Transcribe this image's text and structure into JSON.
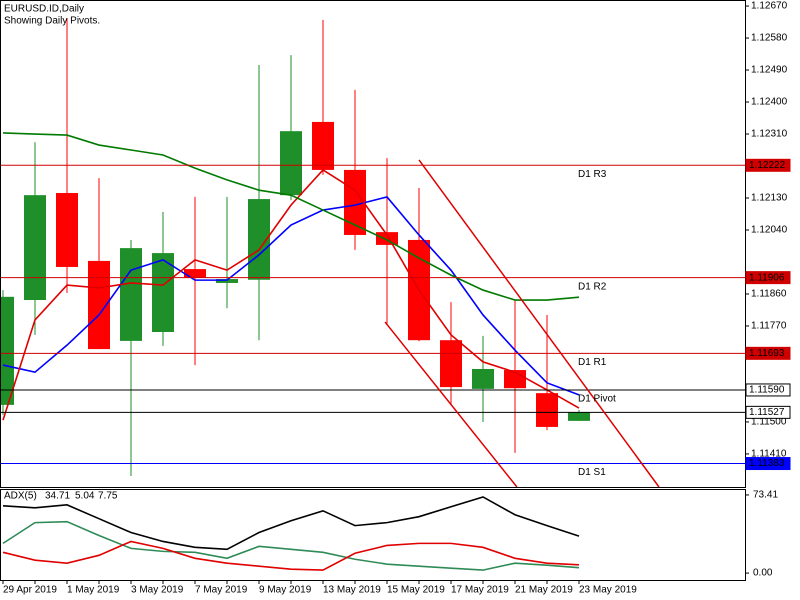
{
  "chart_data": [
    {
      "type": "candlestick",
      "title": "EURUSD.ID,Daily",
      "subtitle": "Showing Daily Pivots.",
      "categories": [
        "29 Apr 2019",
        null,
        "1 May 2019",
        null,
        "3 May 2019",
        null,
        "7 May 2019",
        null,
        "9 May 2019",
        null,
        "13 May 2019",
        null,
        "15 May 2019",
        null,
        "17 May 2019",
        null,
        "21 May 2019",
        null,
        "23 May 2019"
      ],
      "open": [
        1.11548,
        1.11843,
        1.12144,
        1.11953,
        1.11728,
        1.11753,
        1.1193,
        1.11891,
        1.119,
        1.12138,
        1.12344,
        1.12209,
        1.12034,
        1.12012,
        1.1173,
        1.11593,
        1.11646,
        1.11581,
        1.11503
      ],
      "high": [
        1.11871,
        1.12287,
        1.12636,
        1.12186,
        1.12012,
        1.12091,
        1.12133,
        1.12133,
        1.12504,
        1.12532,
        1.12631,
        1.12434,
        1.12242,
        1.12158,
        1.11837,
        1.11742,
        1.11843,
        1.11801,
        1.11534
      ],
      "low": [
        1.1152,
        1.11745,
        1.11863,
        1.11705,
        1.11348,
        1.11714,
        1.1166,
        1.1182,
        1.1173,
        1.12124,
        1.12195,
        1.11984,
        1.11773,
        1.11727,
        1.11548,
        1.115,
        1.11413,
        1.11477,
        1.11503
      ],
      "close": [
        1.11852,
        1.12138,
        1.11936,
        1.11705,
        1.11989,
        1.11975,
        1.11905,
        1.11902,
        1.12127,
        1.12318,
        1.12209,
        1.12026,
        1.11998,
        1.1173,
        1.11598,
        1.11649,
        1.11595,
        1.11486,
        1.11527
      ],
      "up_color": "#1f8f2a",
      "down_color": "#ff0000",
      "series": [
        {
          "color": "#0000ff",
          "values": [
            1.1166,
            1.1164,
            1.11716,
            1.11801,
            1.11927,
            1.11956,
            1.11899,
            1.11899,
            1.1197,
            1.12054,
            1.12096,
            1.1211,
            1.12133,
            1.12026,
            1.11927,
            1.11801,
            1.11702,
            1.1161,
            1.11576
          ]
        },
        {
          "color": "#e00000",
          "values": [
            1.11505,
            1.11787,
            1.11885,
            1.11877,
            1.11891,
            1.11885,
            1.11956,
            1.11927,
            1.11984,
            1.1211,
            1.12209,
            1.12152,
            1.12026,
            1.11871,
            1.11745,
            1.11669,
            1.1164,
            1.1159,
            1.11539
          ]
        },
        {
          "color": "#007a00",
          "values": [
            1.12313,
            1.1231,
            1.12307,
            1.12279,
            1.12265,
            1.12251,
            1.12214,
            1.12181,
            1.12152,
            1.12138,
            1.12096,
            1.12054,
            1.12012,
            1.11961,
            1.11913,
            1.11871,
            1.11843,
            1.11843,
            1.11851
          ]
        }
      ],
      "pivots": [
        {
          "name": "D1 R3",
          "value": 1.12222,
          "label": "1.12222",
          "color": "#d00000"
        },
        {
          "name": "D1 R2",
          "value": 1.11906,
          "label": "1.11906",
          "color": "#d00000"
        },
        {
          "name": "D1 R1",
          "value": 1.11693,
          "label": "1.11693",
          "color": "#d00000"
        },
        {
          "name": "D1 Pivot",
          "value": 1.1159,
          "label": "1.11590",
          "color": "#000000"
        },
        {
          "name": "D1 S1",
          "value": 1.11383,
          "label": "1.11383",
          "color": "#0000ff"
        }
      ],
      "last_price": {
        "value": 1.11527,
        "label": "1.11527",
        "color": "#000000"
      },
      "trendlines": [
        {
          "color": "#e00000",
          "x": [
            13,
            20.5
          ],
          "y": [
            1.12237,
            1.11317
          ]
        },
        {
          "color": "#e00000",
          "x": [
            11.94,
            16.06
          ],
          "y": [
            1.11781,
            1.11317
          ]
        }
      ],
      "ylim": [
        1.11317,
        1.12687
      ],
      "yticks": [
        {
          "value": 1.1267,
          "label": "1.12670"
        },
        {
          "value": 1.1258,
          "label": "1.12580"
        },
        {
          "value": 1.1249,
          "label": "1.12490"
        },
        {
          "value": 1.124,
          "label": "1.12400"
        },
        {
          "value": 1.1231,
          "label": "1.12310"
        },
        {
          "value": 1.1213,
          "label": "1.12130"
        },
        {
          "value": 1.1204,
          "label": "1.12040"
        },
        {
          "value": 1.1186,
          "label": "1.11860"
        },
        {
          "value": 1.1177,
          "label": "1.11770"
        },
        {
          "value": 1.115,
          "label": "1.11500"
        },
        {
          "value": 1.1141,
          "label": "1.11410"
        }
      ]
    },
    {
      "type": "line",
      "title": "ADX(5)",
      "series": [
        {
          "color": "#000000",
          "values": [
            63.2,
            61.3,
            64.1,
            51.1,
            38.1,
            29.7,
            24.2,
            22.3,
            38.1,
            49.2,
            58.5,
            44.6,
            47.4,
            53.0,
            62.3,
            71.5,
            54.8,
            44.6,
            34.71
          ]
        },
        {
          "color": "#2e8b57",
          "values": [
            27.9,
            47.4,
            48.3,
            35.3,
            23.2,
            20.4,
            19.5,
            13.9,
            25.1,
            22.3,
            19.5,
            13.0,
            8.4,
            6.5,
            4.6,
            2.8,
            9.3,
            7.4,
            5.04
          ]
        },
        {
          "color": "#e00000",
          "values": [
            19.5,
            12.1,
            9.3,
            16.7,
            29.7,
            23.2,
            13.9,
            9.3,
            6.5,
            3.7,
            2.8,
            18.6,
            26.0,
            27.9,
            27.9,
            24.2,
            13.9,
            9.3,
            7.75
          ]
        }
      ],
      "ylim": [
        -6.5,
        79.0
      ],
      "yticks": [
        73.41,
        {
          "value": 0,
          "label": "0.00"
        }
      ]
    }
  ]
}
